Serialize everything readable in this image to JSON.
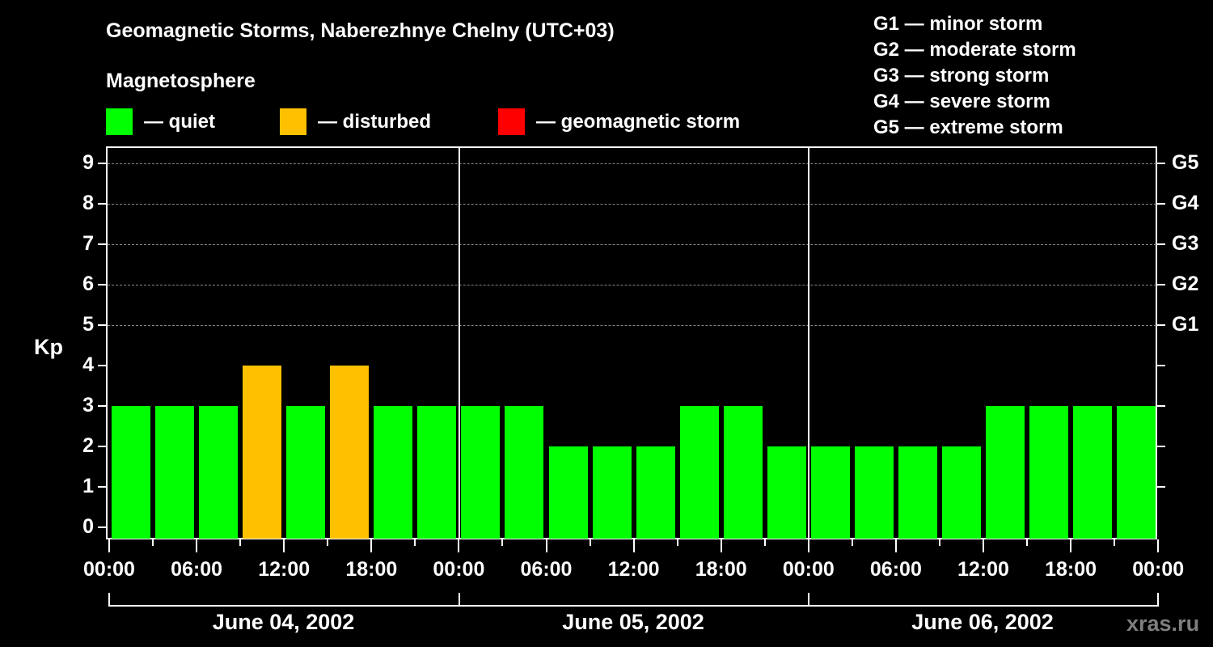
{
  "title": "Geomagnetic Storms, Naberezhnye Chelny (UTC+03)",
  "subtitle": "Magnetosphere",
  "legend": [
    {
      "label": "— quiet",
      "color": "#00ff00"
    },
    {
      "label": "— disturbed",
      "color": "#ffc000"
    },
    {
      "label": "— geomagnetic storm",
      "color": "#ff0000"
    }
  ],
  "g_scale_legend": [
    "G1 — minor storm",
    "G2 — moderate storm",
    "G3 — strong storm",
    "G4 — severe storm",
    "G5 — extreme storm"
  ],
  "watermark": "xras.ru",
  "chart_data": {
    "type": "bar",
    "title": "Geomagnetic Storms, Naberezhnye Chelny (UTC+03)",
    "ylabel": "Kp",
    "xlabel": "",
    "ylim": [
      0,
      9
    ],
    "yticks": [
      0,
      1,
      2,
      3,
      4,
      5,
      6,
      7,
      8,
      9
    ],
    "right_axis_labels": [
      {
        "kp": 5,
        "label": "G1"
      },
      {
        "kp": 6,
        "label": "G2"
      },
      {
        "kp": 7,
        "label": "G3"
      },
      {
        "kp": 8,
        "label": "G4"
      },
      {
        "kp": 9,
        "label": "G5"
      }
    ],
    "grid": "dashed horizontal at Kp 5-9",
    "x_tick_labels": [
      "00:00",
      "06:00",
      "12:00",
      "18:00",
      "00:00",
      "06:00",
      "12:00",
      "18:00",
      "00:00",
      "06:00",
      "12:00",
      "18:00",
      "00:00"
    ],
    "days": [
      "June 04, 2002",
      "June 05, 2002",
      "June 06, 2002"
    ],
    "categories": [
      "06-04 00-03",
      "06-04 03-06",
      "06-04 06-09",
      "06-04 09-12",
      "06-04 12-15",
      "06-04 15-18",
      "06-04 18-21",
      "06-04 21-24",
      "06-05 00-03",
      "06-05 03-06",
      "06-05 06-09",
      "06-05 09-12",
      "06-05 12-15",
      "06-05 15-18",
      "06-05 18-21",
      "06-05 21-24",
      "06-06 00-03",
      "06-06 03-06",
      "06-06 06-09",
      "06-06 09-12",
      "06-06 12-15",
      "06-06 15-18",
      "06-06 18-21",
      "06-06 21-24"
    ],
    "values": [
      3,
      3,
      3,
      4,
      3,
      4,
      3,
      3,
      3,
      3,
      2,
      2,
      2,
      3,
      3,
      2,
      2,
      2,
      2,
      2,
      3,
      3,
      3,
      3
    ],
    "status": [
      "quiet",
      "quiet",
      "quiet",
      "disturbed",
      "quiet",
      "disturbed",
      "quiet",
      "quiet",
      "quiet",
      "quiet",
      "quiet",
      "quiet",
      "quiet",
      "quiet",
      "quiet",
      "quiet",
      "quiet",
      "quiet",
      "quiet",
      "quiet",
      "quiet",
      "quiet",
      "quiet",
      "quiet"
    ],
    "colors": {
      "quiet": "#00ff00",
      "disturbed": "#ffc000",
      "storm": "#ff0000"
    }
  }
}
